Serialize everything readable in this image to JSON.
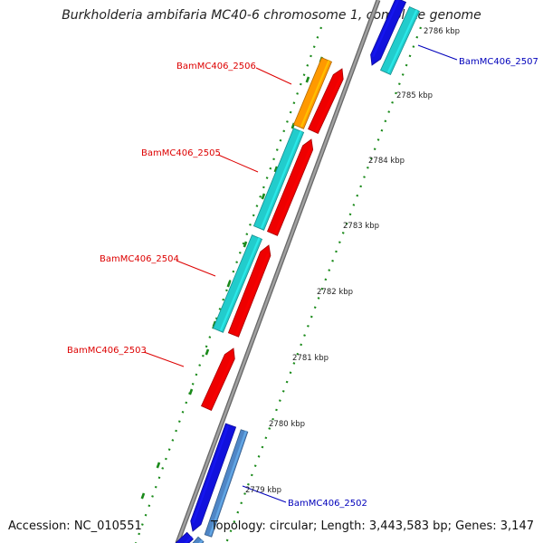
{
  "title": "Burkholderia ambifaria MC40-6 chromosome 1, complete genome",
  "footer": {
    "accession": "Accession: NC_010551",
    "topology": "Topology: circular; Length: 3,443,583 bp; Genes: 3,147"
  },
  "scale_ticks": [
    {
      "id": "t2786",
      "label": "2786 kbp"
    },
    {
      "id": "t2785",
      "label": "2785 kbp"
    },
    {
      "id": "t2784",
      "label": "2784 kbp"
    },
    {
      "id": "t2783",
      "label": "2783 kbp"
    },
    {
      "id": "t2782",
      "label": "2782 kbp"
    },
    {
      "id": "t2781",
      "label": "2781 kbp"
    },
    {
      "id": "t2780",
      "label": "2780 kbp"
    },
    {
      "id": "t2779",
      "label": "2779 kbp"
    }
  ],
  "gene_labels": [
    {
      "id": "g2506",
      "text": "BamMC406_2506",
      "color": "#dd0000"
    },
    {
      "id": "g2505",
      "text": "BamMC406_2505",
      "color": "#dd0000"
    },
    {
      "id": "g2504",
      "text": "BamMC406_2504",
      "color": "#dd0000"
    },
    {
      "id": "g2503",
      "text": "BamMC406_2503",
      "color": "#dd0000"
    },
    {
      "id": "g2507",
      "text": "BamMC406_2507",
      "color": "#0000bb"
    },
    {
      "id": "g2502",
      "text": "BamMC406_2502",
      "color": "#0000bb"
    }
  ],
  "colors": {
    "backbone": "#8c8c8c",
    "gene_red": "#ee0000",
    "cds_cyan": "#22cccc",
    "cds_orange": "#ff9900",
    "gene_blue": "#1111dd",
    "gene_steel": "#4f86c6",
    "tick_green": "#1a8a1a"
  }
}
